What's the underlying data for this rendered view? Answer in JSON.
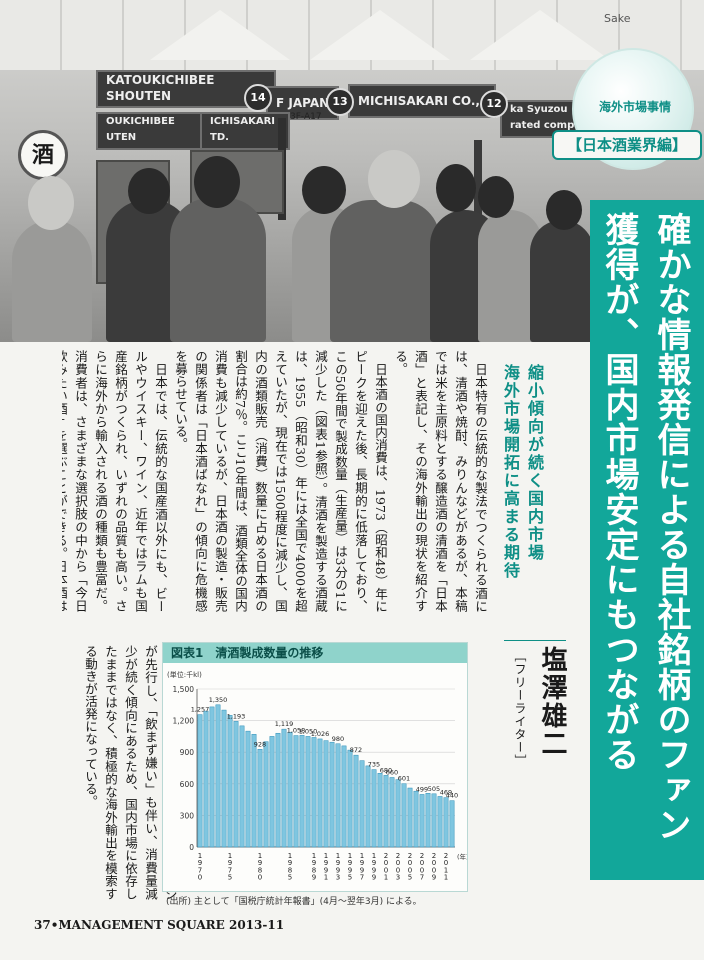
{
  "photo": {
    "signs": [
      "KATOUKICHIBEE\nSHOUTEN",
      "F JAPAN",
      "MICHISAKARI CO., LTD.",
      "OUKICHIBEE\nUTEN",
      "ICHISAKARI\nTD.",
      "ka Syuzou\nrated company"
    ],
    "booth_numbers": [
      "14",
      "13",
      "12"
    ],
    "booth_code": "3F-A17",
    "sake_glyph": "酒",
    "sake_word": "Sake"
  },
  "badge": {
    "kicker": "海外市場事情",
    "series": "【日本酒業界編】"
  },
  "headline": {
    "line1": "確かな情報発信による自社銘柄のファン",
    "line2": "獲得が、国内市場安定にもつながる"
  },
  "subhead": {
    "line1": "縮小傾向が続く国内市場",
    "line2": "海外市場開拓に高まる期待"
  },
  "author": {
    "name": "塩澤雄二",
    "role": "［フリーライター］"
  },
  "body": {
    "paragraphs": [
      "日本特有の伝統的な製法でつくられる酒には、清酒や焼酎、みりんなどがあるが、本稿では米を主原料とする醸造酒の清酒を「日本酒」と表記し、その海外輸出の現状を紹介する。",
      "日本酒の国内消費は、1973（昭和48）年にピークを迎えた後、長期的に低落しており、この50年間で製成数量（生産量）は3分の1に減少した（図表1参照）。清酒を製造する酒蔵は、1955（昭和30）年には全国で4000を超えていたが、現在では1500程度に減少し、国内の酒類販売（消費）数量に占める日本酒の割合は約7％。ここ10年間は、酒類全体の国内消費も減少しているが、日本酒の製造・販売の関係者は「日本酒ばなれ」の傾向に危機感を募らせている。",
      "日本では、伝統的な国産酒以外にも、ビールやウイスキー、ワイン、近年ではラムも国産銘柄がつくられ、いずれの品質も高い。さらに海外から輸入される酒の種類も豊富だ。消費者は、さまざまな選択肢の中から「今日飲みたい酒」を選ぶことができる。日本酒は「わかりにくい、"
    ],
    "lower": "飲みづらい、年よりくさい」というイメージが先行し、「飲まず嫌い」も伴い、消費量減少が続く傾向にあるため、国内市場に依存したままではなく、積極的な海外輸出を模索する動きが活発になっている。"
  },
  "chart": {
    "figure_label": "図表1",
    "heading": "清酒製成数量の推移",
    "source": "(出所) 主として「国税庁統計年報書」(4月～翌年3月) による。"
  },
  "chart_data": {
    "type": "bar",
    "title": "清酒製成数量の推移",
    "ylabel": "(単位:千kl)",
    "xlabel": "(年)",
    "ylim": [
      0,
      1500
    ],
    "yticks": [
      0,
      300,
      600,
      900,
      1200,
      1500
    ],
    "categories": [
      "1970",
      "1971",
      "1972",
      "1973",
      "1974",
      "1975",
      "1976",
      "1977",
      "1978",
      "1979",
      "1980",
      "1981",
      "1982",
      "1983",
      "1984",
      "1985",
      "1986",
      "1987",
      "1988",
      "1989",
      "1990",
      "1991",
      "1992",
      "1993",
      "1994",
      "1995",
      "1996",
      "1997",
      "1998",
      "1999",
      "2000",
      "2001",
      "2002",
      "2003",
      "2004",
      "2005",
      "2006",
      "2007",
      "2008",
      "2009",
      "2010",
      "2011",
      "2012"
    ],
    "tick_labels": [
      "1970",
      "1975",
      "1980",
      "1985",
      "1989",
      "1991",
      "1993",
      "1995",
      "1997",
      "1999",
      "2001",
      "2003",
      "2005",
      "2007",
      "2009",
      "2011"
    ],
    "values": [
      1257,
      1290,
      1330,
      1350,
      1300,
      1250,
      1193,
      1150,
      1100,
      1070,
      928,
      1000,
      1050,
      1080,
      1119,
      1090,
      1058,
      1060,
      1050,
      1040,
      1026,
      1010,
      995,
      980,
      960,
      920,
      872,
      820,
      770,
      735,
      700,
      680,
      660,
      640,
      601,
      560,
      530,
      499,
      510,
      505,
      480,
      469,
      440
    ],
    "data_labels": [
      {
        "i": 0,
        "text": "1,257"
      },
      {
        "i": 3,
        "text": "1,350"
      },
      {
        "i": 6,
        "text": "1,193"
      },
      {
        "i": 10,
        "text": "928"
      },
      {
        "i": 14,
        "text": "1,119"
      },
      {
        "i": 16,
        "text": "1,058"
      },
      {
        "i": 18,
        "text": "1,050"
      },
      {
        "i": 20,
        "text": "1,026"
      },
      {
        "i": 23,
        "text": "980"
      },
      {
        "i": 26,
        "text": "872"
      },
      {
        "i": 29,
        "text": "735"
      },
      {
        "i": 31,
        "text": "680"
      },
      {
        "i": 32,
        "text": "660"
      },
      {
        "i": 34,
        "text": "601"
      },
      {
        "i": 37,
        "text": "499"
      },
      {
        "i": 39,
        "text": "505"
      },
      {
        "i": 41,
        "text": "469"
      },
      {
        "i": 42,
        "text": "440"
      }
    ],
    "bar_color": "#7fc6e0",
    "bar_edge": "#2e8fb8",
    "grid": true
  },
  "footer": {
    "text": "37•MANAGEMENT SQUARE 2013-11"
  },
  "colors": {
    "accent": "#12a79a",
    "accent_dark": "#0e8f86"
  }
}
